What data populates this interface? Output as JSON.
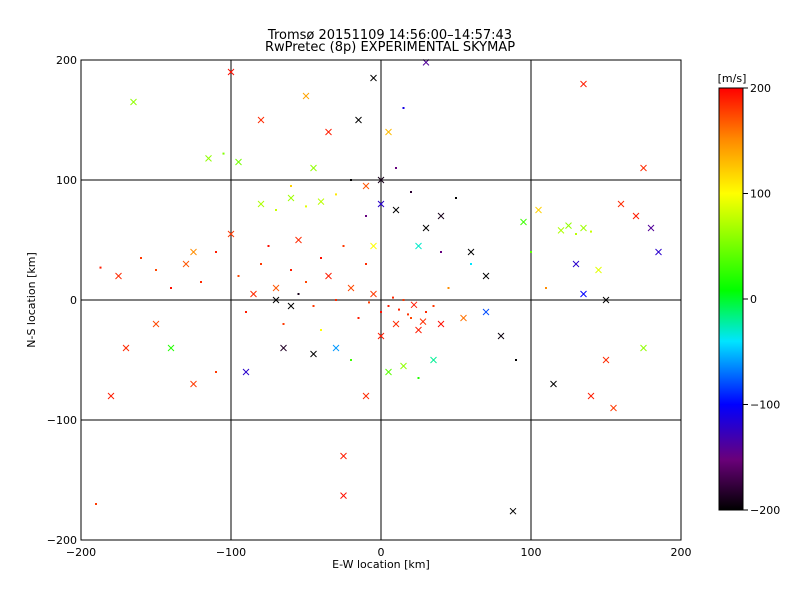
{
  "chart_data": {
    "type": "scatter",
    "title": "Tromsø 20151109 14:56:00–14:57:43",
    "subtitle": "RwPretec (8p) EXPERIMENTAL SKYMAP",
    "xlabel": "E-W location [km]",
    "ylabel": "N-S location [km]",
    "xlim": [
      -200,
      200
    ],
    "ylim": [
      -200,
      200
    ],
    "xticks": [
      "−200",
      "−100",
      "0",
      "100",
      "200"
    ],
    "yticks": [
      "−200",
      "−100",
      "0",
      "100",
      "200"
    ],
    "grid": true,
    "grid_lines_at": [
      -100,
      0,
      100
    ],
    "colorbar": {
      "label": "[m/s]",
      "range": [
        -200,
        200
      ],
      "ticks": [
        "200",
        "100",
        "0",
        "−100",
        "−200"
      ],
      "colormap": "rainbow (black-purple-blue-cyan-green-yellow-red)"
    },
    "marker_types": [
      "dot",
      "x"
    ],
    "series": [
      {
        "points": [
          [
            -187,
            27,
            190,
            "dot"
          ],
          [
            -175,
            20,
            185,
            "x"
          ],
          [
            -160,
            35,
            180,
            "dot"
          ],
          [
            -150,
            25,
            175,
            "dot"
          ],
          [
            -140,
            10,
            195,
            "dot"
          ],
          [
            -130,
            30,
            170,
            "x"
          ],
          [
            -120,
            15,
            185,
            "dot"
          ],
          [
            -110,
            40,
            190,
            "dot"
          ],
          [
            -100,
            55,
            180,
            "x"
          ],
          [
            -95,
            20,
            175,
            "dot"
          ],
          [
            -90,
            -10,
            190,
            "dot"
          ],
          [
            -85,
            5,
            185,
            "x"
          ],
          [
            -80,
            30,
            180,
            "dot"
          ],
          [
            -75,
            45,
            195,
            "dot"
          ],
          [
            -70,
            10,
            170,
            "x"
          ],
          [
            -65,
            -20,
            180,
            "dot"
          ],
          [
            -60,
            25,
            190,
            "dot"
          ],
          [
            -55,
            50,
            185,
            "x"
          ],
          [
            -50,
            15,
            175,
            "dot"
          ],
          [
            -45,
            -5,
            180,
            "dot"
          ],
          [
            -40,
            35,
            195,
            "dot"
          ],
          [
            -35,
            20,
            190,
            "x"
          ],
          [
            -30,
            0,
            185,
            "dot"
          ],
          [
            -25,
            45,
            180,
            "dot"
          ],
          [
            -20,
            10,
            175,
            "x"
          ],
          [
            -15,
            -15,
            190,
            "dot"
          ],
          [
            -10,
            30,
            185,
            "dot"
          ],
          [
            -5,
            5,
            180,
            "x"
          ],
          [
            0,
            -10,
            195,
            "dot"
          ],
          [
            5,
            -5,
            190,
            "dot"
          ],
          [
            10,
            -20,
            185,
            "x"
          ],
          [
            15,
            0,
            180,
            "dot"
          ],
          [
            20,
            -15,
            175,
            "dot"
          ],
          [
            25,
            -25,
            190,
            "x"
          ],
          [
            30,
            -10,
            185,
            "dot"
          ],
          [
            35,
            -5,
            180,
            "dot"
          ],
          [
            40,
            -20,
            195,
            "x"
          ],
          [
            12,
            -8,
            188,
            "dot"
          ],
          [
            18,
            -12,
            182,
            "dot"
          ],
          [
            22,
            -4,
            192,
            "x"
          ],
          [
            8,
            2,
            186,
            "dot"
          ],
          [
            -8,
            -2,
            178,
            "dot"
          ],
          [
            28,
            -18,
            184,
            "x"
          ],
          [
            -115,
            118,
            60,
            "x"
          ],
          [
            -105,
            122,
            55,
            "dot"
          ],
          [
            -95,
            115,
            50,
            "x"
          ],
          [
            -80,
            80,
            70,
            "x"
          ],
          [
            -70,
            75,
            80,
            "dot"
          ],
          [
            -60,
            85,
            65,
            "x"
          ],
          [
            -50,
            78,
            90,
            "dot"
          ],
          [
            -40,
            82,
            75,
            "x"
          ],
          [
            -30,
            88,
            110,
            "dot"
          ],
          [
            120,
            58,
            70,
            "x"
          ],
          [
            125,
            62,
            60,
            "x"
          ],
          [
            130,
            55,
            75,
            "dot"
          ],
          [
            135,
            60,
            65,
            "x"
          ],
          [
            140,
            57,
            80,
            "dot"
          ],
          [
            -10,
            70,
            -150,
            "dot"
          ],
          [
            0,
            80,
            -120,
            "x"
          ],
          [
            10,
            75,
            -200,
            "x"
          ],
          [
            20,
            90,
            -180,
            "dot"
          ],
          [
            30,
            60,
            -200,
            "x"
          ],
          [
            40,
            70,
            -190,
            "x"
          ],
          [
            50,
            85,
            -200,
            "dot"
          ],
          [
            60,
            40,
            -200,
            "x"
          ],
          [
            70,
            20,
            -200,
            "x"
          ],
          [
            80,
            -30,
            -195,
            "x"
          ],
          [
            90,
            -50,
            -200,
            "dot"
          ],
          [
            -60,
            -5,
            -200,
            "x"
          ],
          [
            -70,
            0,
            -200,
            "x"
          ],
          [
            -55,
            5,
            -190,
            "dot"
          ],
          [
            -65,
            -40,
            -185,
            "x"
          ],
          [
            -45,
            -45,
            -200,
            "x"
          ],
          [
            5,
            -60,
            40,
            "x"
          ],
          [
            15,
            -55,
            60,
            "x"
          ],
          [
            25,
            -65,
            20,
            "dot"
          ],
          [
            35,
            -50,
            -20,
            "x"
          ],
          [
            -20,
            -50,
            30,
            "dot"
          ],
          [
            -30,
            -40,
            -60,
            "x"
          ],
          [
            60,
            30,
            -40,
            "dot"
          ],
          [
            70,
            -10,
            -80,
            "x"
          ],
          [
            45,
            10,
            150,
            "dot"
          ],
          [
            55,
            -15,
            160,
            "x"
          ],
          [
            -125,
            -70,
            180,
            "x"
          ],
          [
            -170,
            -40,
            185,
            "x"
          ],
          [
            -180,
            -80,
            190,
            "x"
          ],
          [
            -100,
            190,
            195,
            "x"
          ],
          [
            -25,
            -130,
            190,
            "x"
          ],
          [
            -25,
            -163,
            195,
            "x"
          ],
          [
            -10,
            -80,
            185,
            "x"
          ],
          [
            -110,
            -60,
            180,
            "dot"
          ],
          [
            -150,
            -20,
            175,
            "x"
          ],
          [
            160,
            80,
            185,
            "x"
          ],
          [
            170,
            70,
            190,
            "x"
          ],
          [
            180,
            60,
            -140,
            "x"
          ],
          [
            150,
            -50,
            185,
            "x"
          ],
          [
            140,
            -80,
            190,
            "x"
          ],
          [
            155,
            -90,
            180,
            "x"
          ],
          [
            130,
            30,
            -120,
            "x"
          ],
          [
            150,
            0,
            -200,
            "x"
          ],
          [
            175,
            -40,
            60,
            "x"
          ],
          [
            185,
            40,
            -120,
            "x"
          ],
          [
            115,
            -70,
            -200,
            "x"
          ],
          [
            100,
            40,
            40,
            "dot"
          ],
          [
            95,
            65,
            30,
            "x"
          ],
          [
            105,
            75,
            120,
            "x"
          ],
          [
            -165,
            165,
            60,
            "x"
          ],
          [
            -190,
            -170,
            180,
            "dot"
          ],
          [
            88,
            -176,
            -200,
            "x"
          ],
          [
            135,
            5,
            -100,
            "x"
          ],
          [
            110,
            10,
            150,
            "dot"
          ],
          [
            145,
            25,
            90,
            "x"
          ],
          [
            -140,
            -40,
            20,
            "x"
          ],
          [
            -125,
            40,
            150,
            "x"
          ],
          [
            -90,
            -60,
            -120,
            "x"
          ],
          [
            -40,
            -25,
            100,
            "dot"
          ],
          [
            0,
            -30,
            190,
            "x"
          ],
          [
            -5,
            45,
            100,
            "x"
          ],
          [
            25,
            45,
            -30,
            "x"
          ],
          [
            40,
            40,
            -150,
            "dot"
          ],
          [
            -35,
            140,
            190,
            "x"
          ],
          [
            -15,
            150,
            -200,
            "x"
          ],
          [
            5,
            140,
            130,
            "x"
          ],
          [
            15,
            160,
            -110,
            "dot"
          ],
          [
            -5,
            185,
            -200,
            "x"
          ],
          [
            30,
            198,
            -140,
            "x"
          ],
          [
            -50,
            170,
            140,
            "x"
          ],
          [
            -80,
            150,
            185,
            "x"
          ],
          [
            135,
            180,
            190,
            "x"
          ],
          [
            175,
            110,
            185,
            "x"
          ],
          [
            -20,
            100,
            -200,
            "dot"
          ],
          [
            0,
            100,
            -190,
            "x"
          ],
          [
            -10,
            95,
            170,
            "x"
          ],
          [
            10,
            110,
            -150,
            "dot"
          ],
          [
            -45,
            110,
            60,
            "x"
          ],
          [
            -60,
            95,
            120,
            "dot"
          ]
        ]
      }
    ]
  }
}
